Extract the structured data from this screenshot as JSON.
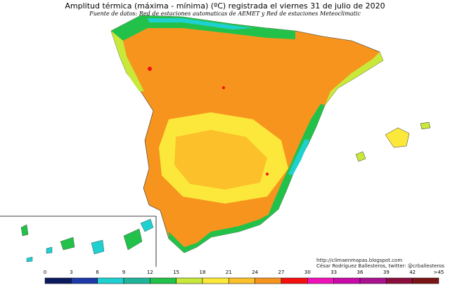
{
  "title": "Amplitud térmica (máxima - mínima) (ºC) registrada el viernes 31 de julio de 2020",
  "subtitle": "Fuente de datos: Red de estaciones automaticas de AEMET y Red de estaciones Meteoclimatic",
  "credits": {
    "url": "http://climaenmapas.blogspot.com",
    "author": "César Rodríguez Ballesteros, twitter: @crballesteros"
  },
  "legend": {
    "ticks": [
      "0",
      "3",
      "6",
      "9",
      "12",
      "15",
      "18",
      "21",
      "24",
      "27",
      "30",
      "33",
      "36",
      "39",
      "42",
      ">45"
    ],
    "colors": [
      "#0c1a5e",
      "#1f3aa8",
      "#1fd0d0",
      "#1fb59a",
      "#22c24a",
      "#c8e83a",
      "#fce83a",
      "#fbc02a",
      "#f7941e",
      "#f50f0f",
      "#f012b8",
      "#c90aa8",
      "#a8128f",
      "#8b0f3e",
      "#7a1515"
    ]
  },
  "colors": {
    "sea": "#ffffff",
    "coast_low": "#22c24a",
    "coast_mid": "#c8e83a",
    "interior_yellow": "#fce83a",
    "interior_gold": "#fbc02a",
    "interior_orange": "#f7941e",
    "hot_spot": "#f50f0f",
    "cool_coast": "#1fd0d0",
    "borders": "#333333"
  }
}
